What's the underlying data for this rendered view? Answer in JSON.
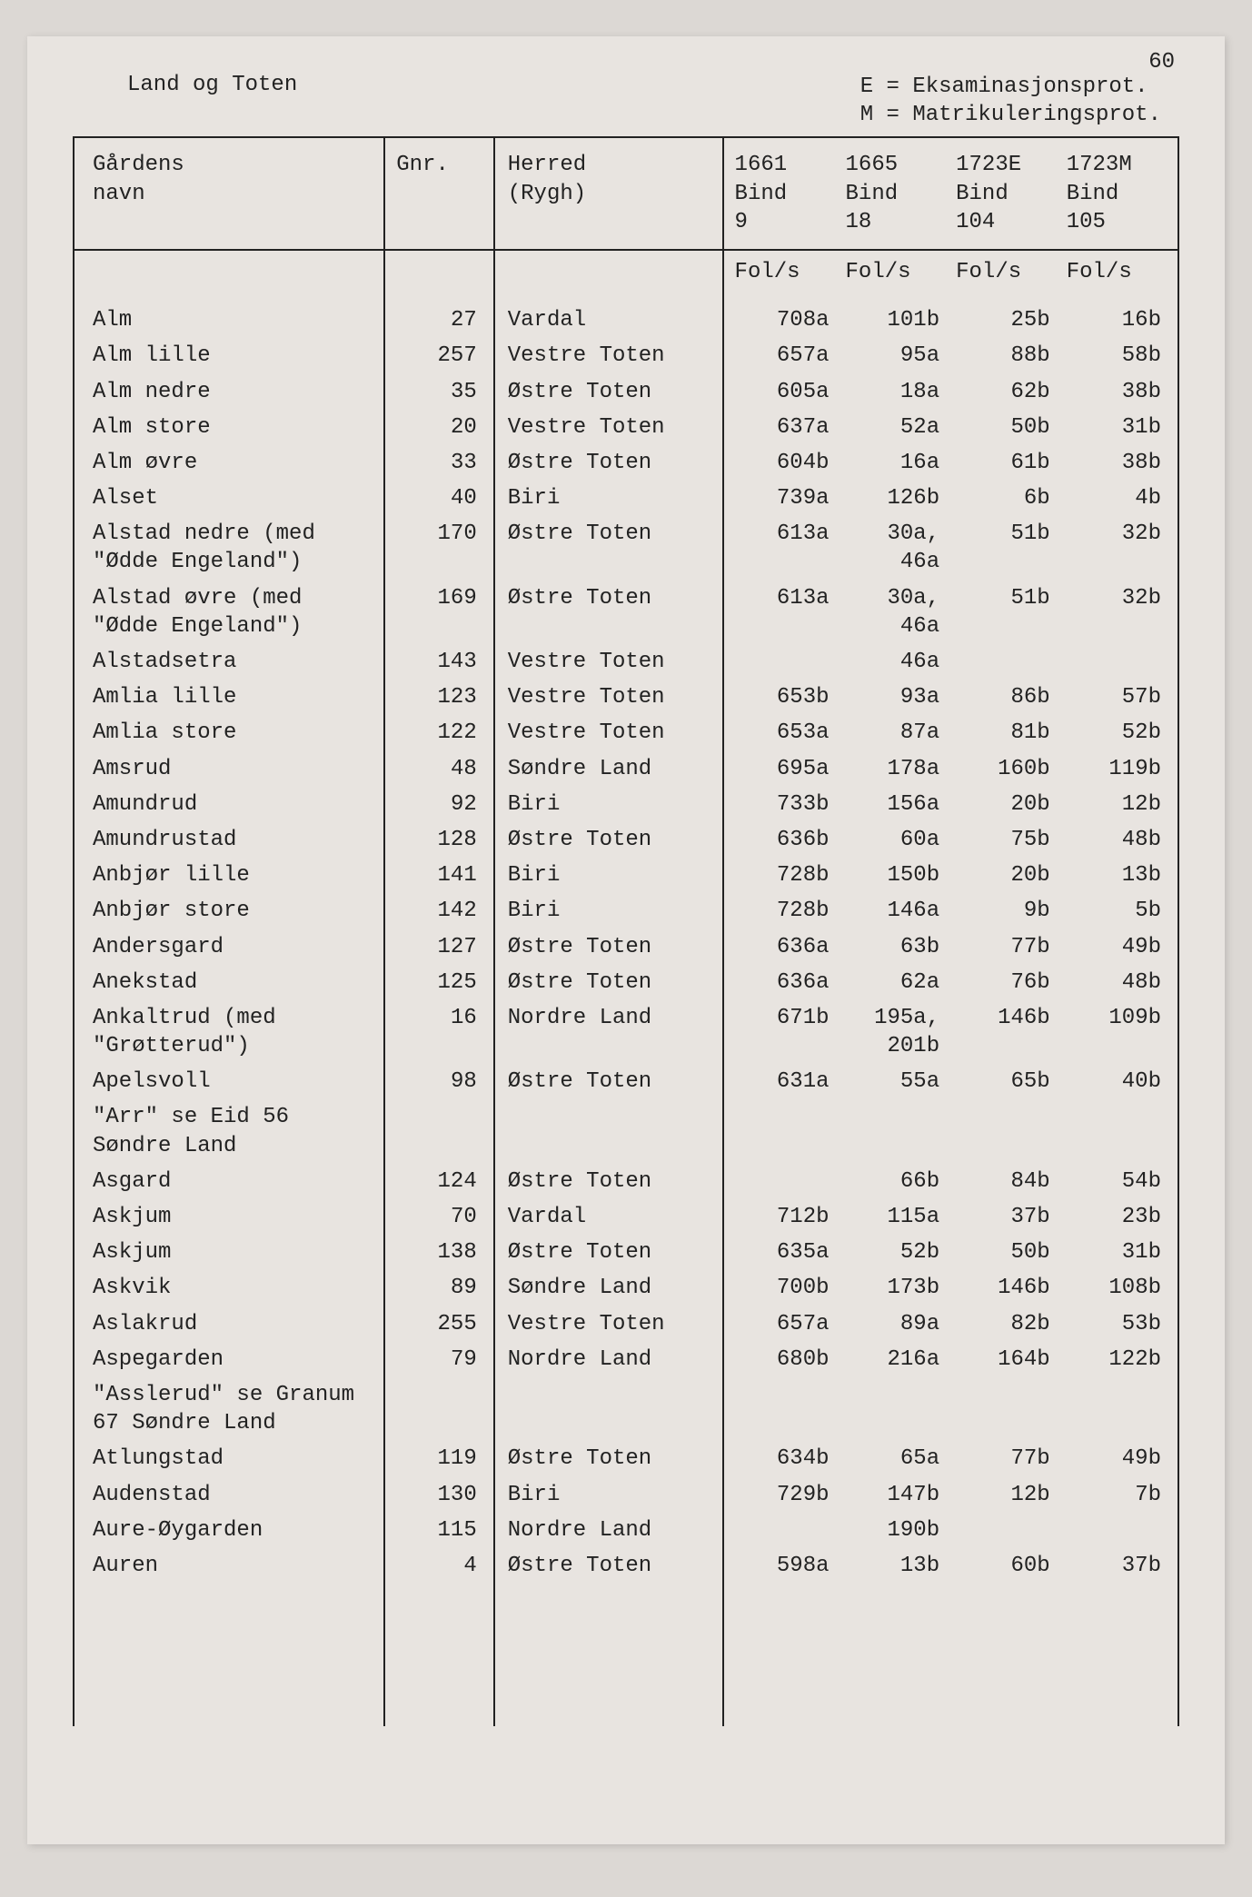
{
  "page_number": "60",
  "title_left": "Land og Toten",
  "legend_line1": "E = Eksaminasjonsprot.",
  "legend_line2": "M = Matrikuleringsprot.",
  "headers": {
    "name": "Gårdens\nnavn",
    "gnr": "Gnr.",
    "herred": "Herred\n(Rygh)",
    "y1": "1661\nBind\n9",
    "y2": "1665\nBind\n18",
    "y3": "1723E\nBind\n104",
    "y4": "1723M\nBind\n105",
    "fols": "Fol/s"
  },
  "rows": [
    {
      "name": "Alm",
      "gnr": "27",
      "herred": "Vardal",
      "f1": "708a",
      "f2": "101b",
      "f3": "25b",
      "f4": "16b"
    },
    {
      "name": "Alm lille",
      "gnr": "257",
      "herred": "Vestre Toten",
      "f1": "657a",
      "f2": "95a",
      "f3": "88b",
      "f4": "58b"
    },
    {
      "name": "Alm nedre",
      "gnr": "35",
      "herred": "Østre Toten",
      "f1": "605a",
      "f2": "18a",
      "f3": "62b",
      "f4": "38b"
    },
    {
      "name": "Alm store",
      "gnr": "20",
      "herred": "Vestre Toten",
      "f1": "637a",
      "f2": "52a",
      "f3": "50b",
      "f4": "31b"
    },
    {
      "name": "Alm øvre",
      "gnr": "33",
      "herred": "Østre Toten",
      "f1": "604b",
      "f2": "16a",
      "f3": "61b",
      "f4": "38b"
    },
    {
      "name": "Alset",
      "gnr": "40",
      "herred": "Biri",
      "f1": "739a",
      "f2": "126b",
      "f3": "6b",
      "f4": "4b"
    },
    {
      "name": "Alstad nedre (med\n\"Ødde Engeland\")",
      "gnr": "170",
      "herred": "Østre Toten",
      "f1": "613a",
      "f2": "30a,\n46a",
      "f3": "51b",
      "f4": "32b"
    },
    {
      "name": "Alstad øvre (med\n\"Ødde Engeland\")",
      "gnr": "169",
      "herred": "Østre Toten",
      "f1": "613a",
      "f2": "30a,\n46a",
      "f3": "51b",
      "f4": "32b"
    },
    {
      "name": "Alstadsetra",
      "gnr": "143",
      "herred": "Vestre Toten",
      "f1": "",
      "f2": "46a",
      "f3": "",
      "f4": ""
    },
    {
      "name": "Amlia lille",
      "gnr": "123",
      "herred": "Vestre Toten",
      "f1": "653b",
      "f2": "93a",
      "f3": "86b",
      "f4": "57b"
    },
    {
      "name": "Amlia store",
      "gnr": "122",
      "herred": "Vestre Toten",
      "f1": "653a",
      "f2": "87a",
      "f3": "81b",
      "f4": "52b"
    },
    {
      "name": "Amsrud",
      "gnr": "48",
      "herred": "Søndre Land",
      "f1": "695a",
      "f2": "178a",
      "f3": "160b",
      "f4": "119b"
    },
    {
      "name": "Amundrud",
      "gnr": "92",
      "herred": "Biri",
      "f1": "733b",
      "f2": "156a",
      "f3": "20b",
      "f4": "12b"
    },
    {
      "name": "Amundrustad",
      "gnr": "128",
      "herred": "Østre Toten",
      "f1": "636b",
      "f2": "60a",
      "f3": "75b",
      "f4": "48b"
    },
    {
      "name": "Anbjør lille",
      "gnr": "141",
      "herred": "Biri",
      "f1": "728b",
      "f2": "150b",
      "f3": "20b",
      "f4": "13b"
    },
    {
      "name": "Anbjør store",
      "gnr": "142",
      "herred": "Biri",
      "f1": "728b",
      "f2": "146a",
      "f3": "9b",
      "f4": "5b"
    },
    {
      "name": "Andersgard",
      "gnr": "127",
      "herred": "Østre Toten",
      "f1": "636a",
      "f2": "63b",
      "f3": "77b",
      "f4": "49b"
    },
    {
      "name": "Anekstad",
      "gnr": "125",
      "herred": "Østre Toten",
      "f1": "636a",
      "f2": "62a",
      "f3": "76b",
      "f4": "48b"
    },
    {
      "name": "Ankaltrud (med\n\"Grøtterud\")",
      "gnr": "16",
      "herred": "Nordre Land",
      "f1": "671b",
      "f2": "195a,\n201b",
      "f3": "146b",
      "f4": "109b"
    },
    {
      "name": "Apelsvoll",
      "gnr": "98",
      "herred": "Østre Toten",
      "f1": "631a",
      "f2": "55a",
      "f3": "65b",
      "f4": "40b"
    },
    {
      "name": "\"Arr\" se Eid 56\nSøndre Land",
      "gnr": "",
      "herred": "",
      "f1": "",
      "f2": "",
      "f3": "",
      "f4": ""
    },
    {
      "name": "Asgard",
      "gnr": "124",
      "herred": "Østre Toten",
      "f1": "",
      "f2": "66b",
      "f3": "84b",
      "f4": "54b"
    },
    {
      "name": "Askjum",
      "gnr": "70",
      "herred": "Vardal",
      "f1": "712b",
      "f2": "115a",
      "f3": "37b",
      "f4": "23b"
    },
    {
      "name": "Askjum",
      "gnr": "138",
      "herred": "Østre Toten",
      "f1": "635a",
      "f2": "52b",
      "f3": "50b",
      "f4": "31b"
    },
    {
      "name": "Askvik",
      "gnr": "89",
      "herred": "Søndre Land",
      "f1": "700b",
      "f2": "173b",
      "f3": "146b",
      "f4": "108b"
    },
    {
      "name": "Aslakrud",
      "gnr": "255",
      "herred": "Vestre Toten",
      "f1": "657a",
      "f2": "89a",
      "f3": "82b",
      "f4": "53b"
    },
    {
      "name": "Aspegarden",
      "gnr": "79",
      "herred": "Nordre Land",
      "f1": "680b",
      "f2": "216a",
      "f3": "164b",
      "f4": "122b"
    },
    {
      "name": "\"Asslerud\" se Granum\n67 Søndre Land",
      "gnr": "",
      "herred": "",
      "f1": "",
      "f2": "",
      "f3": "",
      "f4": ""
    },
    {
      "name": "Atlungstad",
      "gnr": "119",
      "herred": "Østre Toten",
      "f1": "634b",
      "f2": "65a",
      "f3": "77b",
      "f4": "49b"
    },
    {
      "name": "Audenstad",
      "gnr": "130",
      "herred": "Biri",
      "f1": "729b",
      "f2": "147b",
      "f3": "12b",
      "f4": "7b"
    },
    {
      "name": "Aure-Øygarden",
      "gnr": "115",
      "herred": "Nordre Land",
      "f1": "",
      "f2": "190b",
      "f3": "",
      "f4": ""
    },
    {
      "name": "Auren",
      "gnr": "4",
      "herred": "Østre Toten",
      "f1": "598a",
      "f2": "13b",
      "f3": "60b",
      "f4": "37b"
    }
  ],
  "style": {
    "background": "#e8e4e0",
    "outer_background": "#dcd8d4",
    "text_color": "#222222",
    "border_color": "#222222",
    "font_family": "Courier New",
    "font_size_pt": 18
  }
}
